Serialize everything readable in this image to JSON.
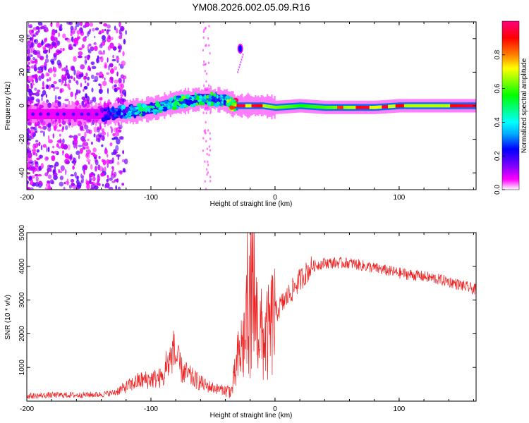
{
  "title": "YM08.2026.002.05.09.R16",
  "chart_data": [
    {
      "type": "heatmap",
      "title": "YM08.2026.002.05.09.R16",
      "xlabel": "Height of straight line (km)",
      "ylabel": "Frequency (Hz)",
      "xlim": [
        -200,
        162
      ],
      "ylim": [
        -50,
        50
      ],
      "xticks": [
        -200,
        -100,
        0,
        100
      ],
      "yticks": [
        -40,
        -20,
        0,
        20,
        40
      ],
      "colorbar": {
        "label": "Normalized spectral amplitude",
        "range": [
          0,
          1
        ],
        "ticks": [
          "0.0",
          "0.2",
          "0.4",
          "0.6",
          "0.8"
        ],
        "colormap": [
          "#ffffff",
          "#ff00ff",
          "#8000ff",
          "#0000ff",
          "#00aaff",
          "#00ffff",
          "#00ff80",
          "#00ff00",
          "#80ff00",
          "#ffff00",
          "#ff8000",
          "#ff0000",
          "#ff0080"
        ]
      },
      "doppler_ridge": {
        "height_km": [
          -200,
          -140,
          -125,
          -110,
          -95,
          -80,
          -70,
          -60,
          -50,
          -40,
          -35,
          -30,
          -20,
          -10,
          0,
          20,
          40,
          60,
          80,
          100,
          120,
          140,
          160
        ],
        "frequency_hz": [
          -5,
          -5,
          -4,
          -3,
          -1,
          2,
          3,
          4,
          4,
          3,
          1,
          0,
          0,
          0,
          -1,
          0,
          -1,
          -1,
          -1,
          0,
          0,
          0,
          0
        ],
        "peak_amplitude": [
          0.15,
          0.2,
          0.35,
          0.45,
          0.45,
          0.5,
          0.55,
          0.5,
          0.5,
          0.45,
          0.8,
          0.95,
          0.95,
          0.9,
          0.85,
          0.75,
          0.8,
          0.9,
          0.95,
          0.9,
          0.9,
          0.9,
          0.95
        ]
      },
      "features": [
        {
          "height_km": -28,
          "frequency_hz": 34,
          "amplitude": 0.25
        }
      ]
    },
    {
      "type": "line",
      "xlabel": "Height of straight line (km)",
      "ylabel": "SNR (10 * v/v)",
      "xlim": [
        -200,
        162
      ],
      "ylim": [
        0,
        5000
      ],
      "xticks": [
        -200,
        -100,
        0,
        100
      ],
      "yticks": [
        1000,
        2000,
        3000,
        4000,
        5000
      ],
      "color": "#ee2222",
      "series": [
        {
          "name": "SNR",
          "x": [
            -200,
            -180,
            -160,
            -140,
            -130,
            -120,
            -110,
            -100,
            -90,
            -82,
            -75,
            -65,
            -55,
            -45,
            -35,
            -30,
            -25,
            -20,
            -15,
            -10,
            -5,
            0,
            10,
            20,
            30,
            40,
            60,
            80,
            100,
            120,
            140,
            162
          ],
          "y": [
            150,
            180,
            180,
            200,
            250,
            420,
            600,
            650,
            700,
            1500,
            900,
            650,
            450,
            350,
            300,
            1200,
            1800,
            2700,
            2500,
            1800,
            2000,
            2600,
            3100,
            3600,
            4000,
            4100,
            4100,
            3950,
            3800,
            3700,
            3550,
            3300
          ]
        }
      ]
    }
  ]
}
